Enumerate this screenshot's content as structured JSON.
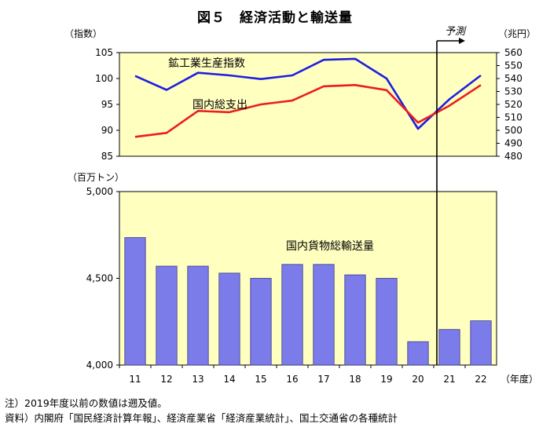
{
  "title": "図５　経済活動と輸送量",
  "notes": [
    "注）2019年度以前の数値は遡及値。",
    "資料）内閣府「国民経済計算年報」、経済産業省「経済産業統計」、国土交通省の各種統計"
  ],
  "forecast_label": "予測",
  "colors": {
    "panel_bg": "#ffffc0",
    "blue": "#1f1fe0",
    "red": "#ee1c1c",
    "bar": "#7b7bea",
    "bar_stroke": "#3a3a8a"
  },
  "chart_data": [
    {
      "type": "line",
      "x": [
        "11",
        "12",
        "13",
        "14",
        "15",
        "16",
        "17",
        "18",
        "19",
        "20",
        "21",
        "22"
      ],
      "y_left_label": "（指数）",
      "y_right_label": "（兆円）",
      "y_left_ticks": [
        "105",
        "100",
        "95",
        "90",
        "85"
      ],
      "y_right_ticks": [
        "560",
        "550",
        "540",
        "530",
        "520",
        "510",
        "500",
        "490",
        "480"
      ],
      "y_left_lim": [
        85,
        105
      ],
      "y_right_lim": [
        480,
        560
      ],
      "series": [
        {
          "name": "鉱工業生産指数",
          "axis": "left",
          "color": "#1f1fe0",
          "values": [
            100.5,
            97.8,
            101.1,
            100.6,
            99.9,
            100.6,
            103.6,
            103.8,
            100.0,
            90.3,
            96.0,
            100.6
          ]
        },
        {
          "name": "国内総支出",
          "axis": "right",
          "color": "#ee1c1c",
          "values": [
            495,
            498,
            515,
            514,
            520,
            523,
            534,
            535,
            531,
            506,
            519,
            535
          ]
        }
      ]
    },
    {
      "type": "bar",
      "categories": [
        "11",
        "12",
        "13",
        "14",
        "15",
        "16",
        "17",
        "18",
        "19",
        "20",
        "21",
        "22"
      ],
      "y_label": "（百万トン）",
      "y_ticks": [
        "5,000",
        "4,500",
        "4,000"
      ],
      "ylim": [
        4000,
        5000
      ],
      "series": [
        {
          "name": "国内貨物総輸送量",
          "color": "#7b7bea",
          "values": [
            4735,
            4570,
            4570,
            4530,
            4500,
            4580,
            4580,
            4520,
            4500,
            4135,
            4205,
            4255
          ]
        }
      ],
      "x_unit_label": "（年度）"
    }
  ]
}
